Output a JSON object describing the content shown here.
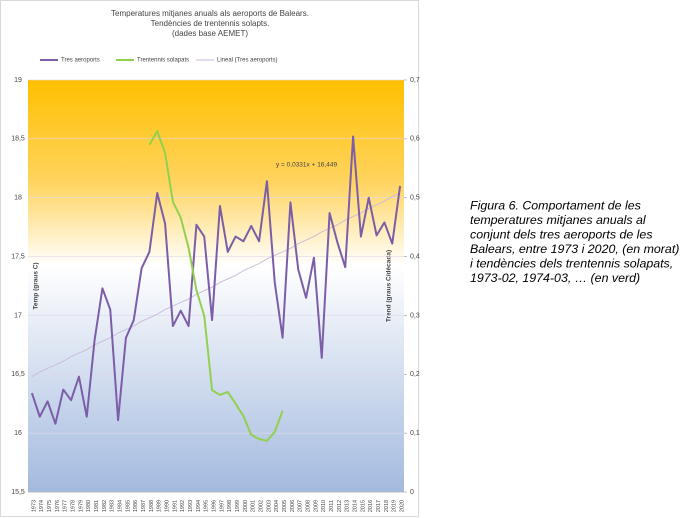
{
  "chart_data": {
    "type": "line",
    "title": [
      "Temperatures mitjanes anuals als aeroports de Balears.",
      "Tendències de trentennis solapts.",
      "(dades base AEMET)"
    ],
    "y_label": "Temp (graus C)",
    "y2_label": "Trend (graus C/dècada)",
    "annotation": "y = 0,0331x + 16,449",
    "categories": [
      "1973",
      "1974",
      "1975",
      "1976",
      "1977",
      "1978",
      "1979",
      "1980",
      "1981",
      "1982",
      "1983",
      "1984",
      "1985",
      "1986",
      "1987",
      "1988",
      "1989",
      "1990",
      "1991",
      "1992",
      "1993",
      "1994",
      "1995",
      "1996",
      "1997",
      "1998",
      "1999",
      "2000",
      "2001",
      "2002",
      "2003",
      "2004",
      "2005",
      "2006",
      "2007",
      "2008",
      "2009",
      "2010",
      "2011",
      "2012",
      "2013",
      "2014",
      "2015",
      "2016",
      "2017",
      "2018",
      "2019",
      "2020"
    ],
    "series": [
      {
        "name": "Tres aeroports",
        "color": "#7b5ea7",
        "values": [
          16.34,
          16.14,
          16.27,
          16.08,
          16.37,
          16.28,
          16.48,
          16.14,
          16.79,
          17.23,
          17.05,
          16.11,
          16.81,
          16.96,
          17.4,
          17.54,
          18.04,
          17.78,
          16.91,
          17.04,
          16.91,
          17.77,
          17.67,
          16.96,
          17.93,
          17.54,
          17.67,
          17.63,
          17.76,
          17.63,
          18.14,
          17.28,
          16.81,
          17.96,
          17.39,
          17.15,
          17.49,
          16.64,
          17.87,
          17.62,
          17.41,
          18.52,
          17.67,
          18.0,
          17.68,
          17.79,
          17.61,
          18.1
        ]
      },
      {
        "name": "Trentennis solapats",
        "color": "#92d050",
        "axis": "y2",
        "values": [
          null,
          null,
          null,
          null,
          null,
          null,
          null,
          null,
          null,
          null,
          null,
          null,
          null,
          null,
          null,
          0.59,
          0.613,
          0.576,
          0.493,
          0.466,
          0.415,
          0.343,
          0.299,
          0.173,
          0.165,
          0.17,
          0.15,
          0.129,
          0.097,
          0.09,
          0.087,
          0.102,
          0.138,
          null,
          null,
          null,
          null,
          null,
          null,
          null,
          null,
          null,
          null,
          null,
          null,
          null,
          null,
          null
        ]
      },
      {
        "name": "Lineal  (Tres aeroports)",
        "color": "#c9b8dc",
        "values": [
          16.48,
          16.52,
          16.55,
          16.58,
          16.61,
          16.65,
          16.68,
          16.71,
          16.75,
          16.78,
          16.81,
          16.85,
          16.88,
          16.91,
          16.95,
          16.98,
          17.01,
          17.05,
          17.08,
          17.11,
          17.14,
          17.18,
          17.21,
          17.24,
          17.28,
          17.31,
          17.34,
          17.38,
          17.41,
          17.44,
          17.48,
          17.51,
          17.54,
          17.57,
          17.61,
          17.64,
          17.67,
          17.71,
          17.74,
          17.77,
          17.81,
          17.84,
          17.87,
          17.91,
          17.94,
          17.97,
          18.01,
          18.04
        ]
      }
    ],
    "ylim": [
      15.5,
      19
    ],
    "yticks": [
      {
        "value": 15.5,
        "label": "15,5"
      },
      16,
      {
        "value": 16.5,
        "label": "16,5"
      },
      17,
      {
        "value": 17.5,
        "label": "17,5"
      },
      18,
      {
        "value": 18.5,
        "label": "18,5"
      },
      19
    ],
    "y2lim": [
      0,
      0.7
    ],
    "y2ticks": [
      0,
      {
        "value": 0.1,
        "label": "0,1"
      },
      {
        "value": 0.2,
        "label": "0,2"
      },
      {
        "value": 0.3,
        "label": "0,3"
      },
      {
        "value": 0.4,
        "label": "0,4"
      },
      {
        "value": 0.5,
        "label": "0,5"
      },
      {
        "value": 0.6,
        "label": "0,6"
      },
      {
        "value": 0.7,
        "label": "0,7"
      }
    ],
    "grid": true,
    "legend": "top"
  },
  "caption": [
    "Figura 6. Comportament de les",
    "temperatures mitjanes anuals al",
    "conjunt dels tres aeroports de les",
    "Balears, entre 1973 i 2020, (en morat)",
    "i tendències dels trentennis solapats,",
    "1973-02, 1974-03, … (en verd)"
  ]
}
